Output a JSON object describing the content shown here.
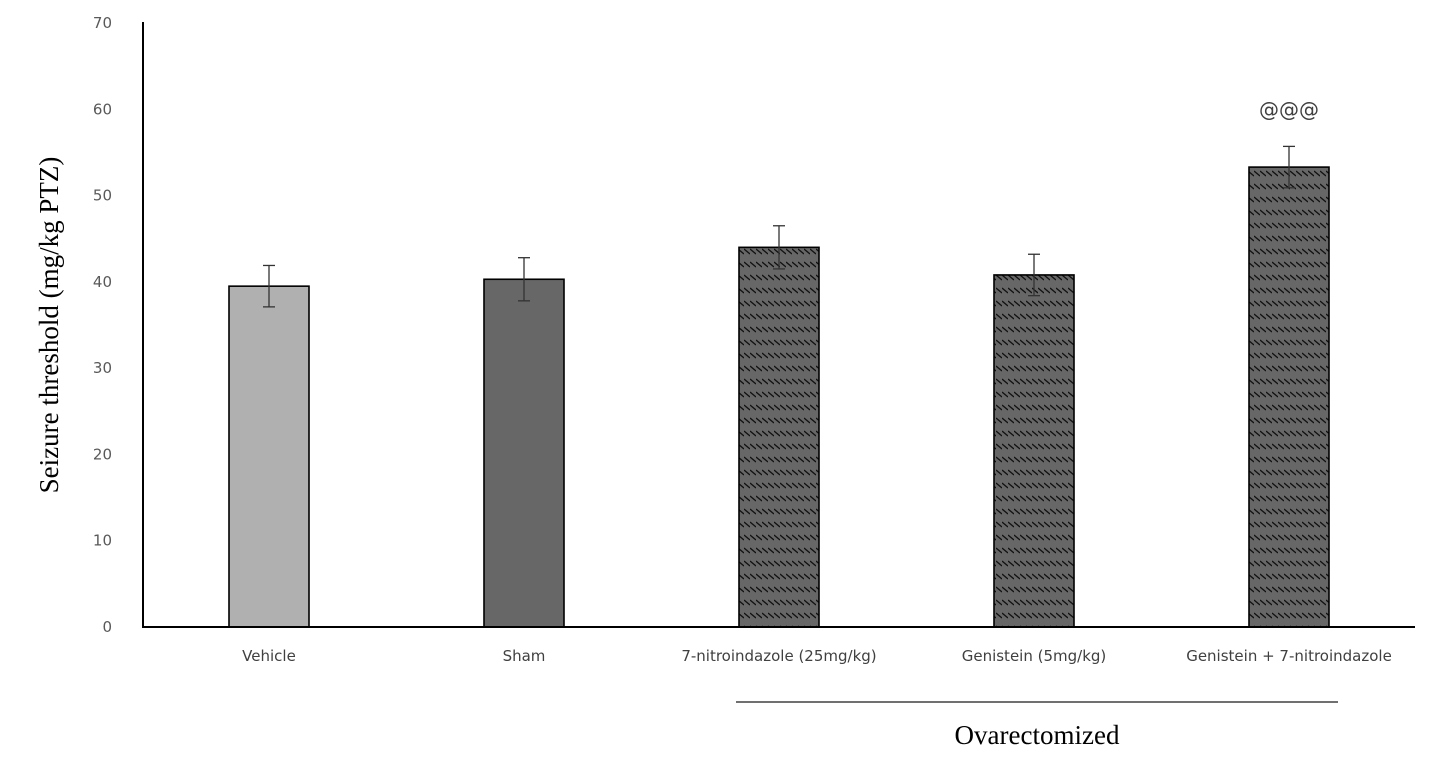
{
  "chart_data": {
    "type": "bar",
    "title": "",
    "ylabel": "Seizure threshold (mg/kg PTZ)",
    "xlabel": "",
    "ylim": [
      0,
      70
    ],
    "yticks": [
      0,
      10,
      20,
      30,
      40,
      50,
      60,
      70
    ],
    "grid": false,
    "categories": [
      "Vehicle",
      "Sham",
      "7-nitroindazole (25mg/kg)",
      "Genistein (5mg/kg)",
      "Genistein + 7-nitroindazole"
    ],
    "values": [
      39.5,
      40.3,
      44.0,
      40.8,
      53.3
    ],
    "error": [
      2.4,
      2.5,
      2.5,
      2.4,
      2.4
    ],
    "fills": [
      "#b0b0b0",
      "#676767",
      "#676767",
      "#676767",
      "#676767"
    ],
    "hatched": [
      false,
      false,
      true,
      true,
      true
    ],
    "annotations": [
      {
        "category": "Genistein + 7-nitroindazole",
        "text": "@@@"
      }
    ],
    "group_label": {
      "text": "Ovarectomized",
      "categories": [
        "7-nitroindazole (25mg/kg)",
        "Genistein (5mg/kg)",
        "Genistein + 7-nitroindazole"
      ]
    }
  }
}
